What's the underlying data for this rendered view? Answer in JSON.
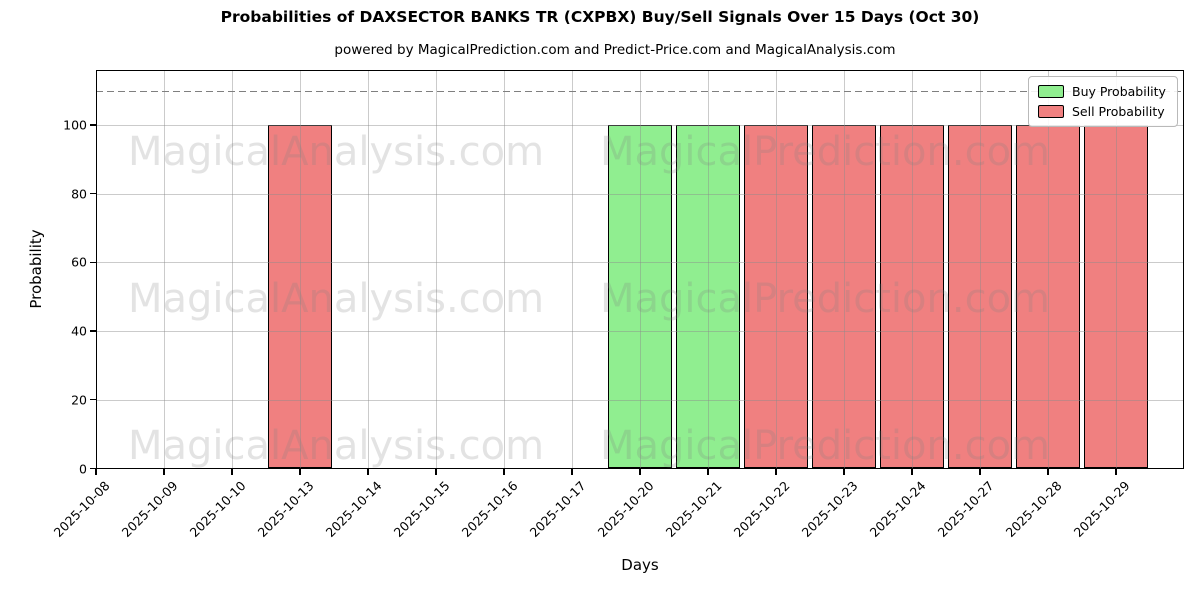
{
  "title": "Probabilities of DAXSECTOR BANKS TR (CXPBX) Buy/Sell Signals Over 15 Days (Oct 30)",
  "subtitle": "powered by MagicalPrediction.com and Predict-Price.com and MagicalAnalysis.com",
  "watermarks": {
    "left_text": "MagicalAnalysis.com",
    "right_text": "MagicalPrediction.com"
  },
  "legend": {
    "items": [
      {
        "label": "Buy Probability",
        "color": "#90EE90"
      },
      {
        "label": "Sell Probability",
        "color": "#F08080"
      }
    ]
  },
  "chart_data": {
    "type": "bar",
    "title": "Probabilities of DAXSECTOR BANKS TR (CXPBX) Buy/Sell Signals Over 15 Days (Oct 30)",
    "subtitle": "powered by MagicalPrediction.com and Predict-Price.com and MagicalAnalysis.com",
    "xlabel": "Days",
    "ylabel": "Probability",
    "categories": [
      "2025-10-08",
      "2025-10-09",
      "2025-10-10",
      "2025-10-13",
      "2025-10-14",
      "2025-10-15",
      "2025-10-16",
      "2025-10-17",
      "2025-10-20",
      "2025-10-21",
      "2025-10-22",
      "2025-10-23",
      "2025-10-24",
      "2025-10-27",
      "2025-10-28",
      "2025-10-29"
    ],
    "series": [
      {
        "name": "Buy Probability",
        "color": "#90EE90",
        "values": [
          0,
          0,
          0,
          0,
          0,
          0,
          0,
          0,
          100,
          100,
          0,
          0,
          0,
          0,
          0,
          0
        ]
      },
      {
        "name": "Sell Probability",
        "color": "#F08080",
        "values": [
          0,
          0,
          0,
          100,
          0,
          0,
          0,
          0,
          0,
          0,
          100,
          100,
          100,
          100,
          100,
          100
        ]
      }
    ],
    "bar_edge_color": "#000000",
    "yticks": [
      0,
      20,
      40,
      60,
      80,
      100
    ],
    "ylim": [
      0,
      116
    ],
    "dashed_line_y": 110,
    "dashed_line_color": "#7f7f7f",
    "grid": true,
    "grid_color": "#b0b0b0",
    "legend_position": "upper right"
  }
}
